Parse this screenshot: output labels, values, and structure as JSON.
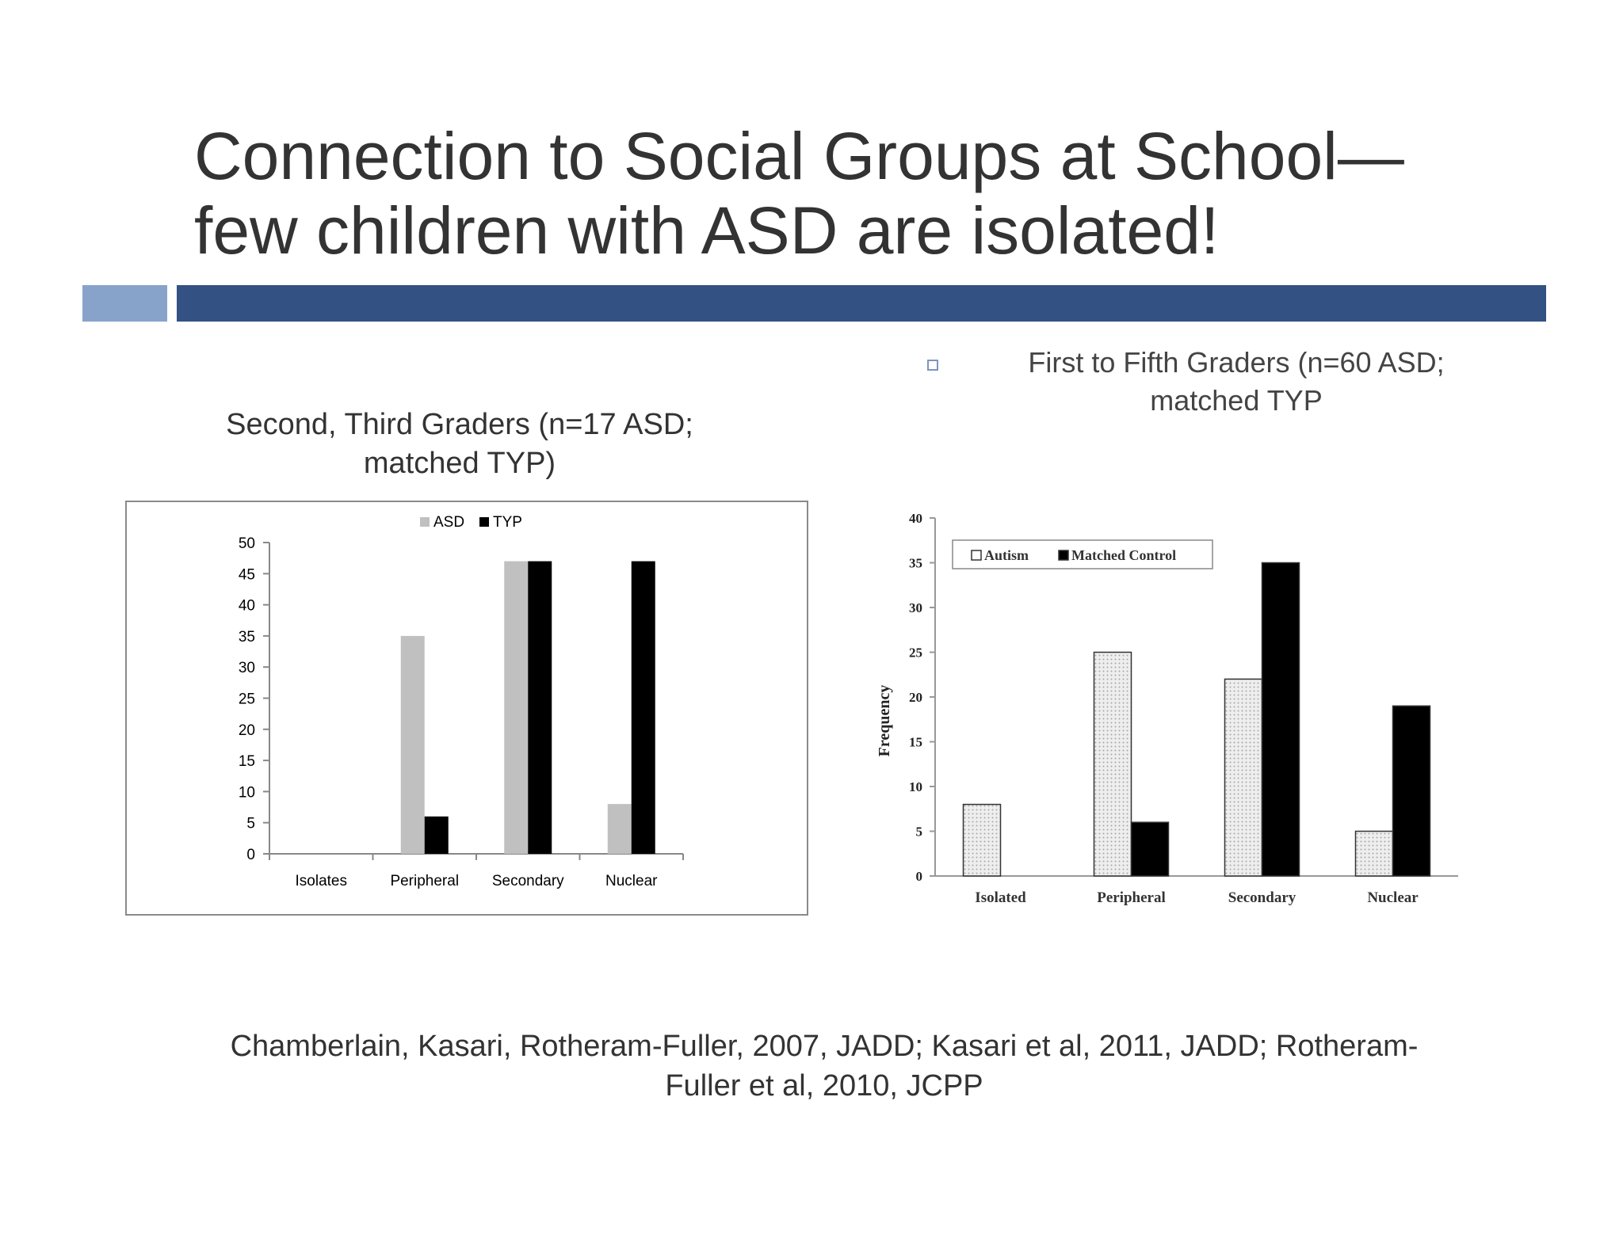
{
  "slide": {
    "title_line1": "Connection to Social Groups at School—",
    "title_line2": "few children with ASD are isolated!",
    "colors": {
      "accent_light": "#87a3c9",
      "accent_dark": "#335283",
      "bullet": "#7d95bd"
    },
    "left_caption_line1": "Second, Third Graders (n=17 ASD;",
    "left_caption_line2": "matched TYP)",
    "right_caption_line1": "First to Fifth Graders (n=60 ASD;",
    "right_caption_line2": "matched TYP",
    "citation_line1": "Chamberlain, Kasari, Rotheram-Fuller, 2007, JADD; Kasari et al, 2011, JADD; Rotheram-",
    "citation_line2": "Fuller et al, 2010, JCPP"
  },
  "chart_data": [
    {
      "type": "bar",
      "title": "",
      "xlabel": "",
      "ylabel": "",
      "categories": [
        "Isolates",
        "Peripheral",
        "Secondary",
        "Nuclear"
      ],
      "series": [
        {
          "name": "ASD",
          "values": [
            0,
            35,
            47,
            8
          ],
          "color": "#c0c0c0"
        },
        {
          "name": "TYP",
          "values": [
            0,
            6,
            47,
            47
          ],
          "color": "#000000"
        }
      ],
      "ylim": [
        0,
        50
      ],
      "yticks": [
        0,
        5,
        10,
        15,
        20,
        25,
        30,
        35,
        40,
        45,
        50
      ],
      "legend": "top-center",
      "grid": false
    },
    {
      "type": "bar",
      "title": "",
      "xlabel": "",
      "ylabel": "Frequency",
      "categories": [
        "Isolated",
        "Peripheral",
        "Secondary",
        "Nuclear"
      ],
      "series": [
        {
          "name": "Autism",
          "values": [
            8,
            25,
            22,
            5
          ],
          "color": "#e4e4e4"
        },
        {
          "name": "Matched Control",
          "values": [
            0,
            6,
            35,
            19
          ],
          "color": "#000000"
        }
      ],
      "ylim": [
        0,
        40
      ],
      "yticks": [
        0,
        5,
        10,
        15,
        20,
        25,
        30,
        35,
        40
      ],
      "legend": "top-left",
      "grid": false
    }
  ]
}
